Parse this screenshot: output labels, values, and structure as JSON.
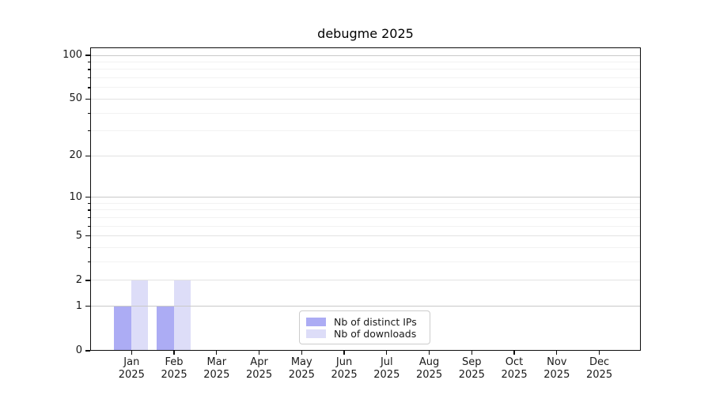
{
  "chart_data": {
    "type": "bar",
    "title": "debugme 2025",
    "x_axis": {
      "categories": [
        "Jan",
        "Feb",
        "Mar",
        "Apr",
        "May",
        "Jun",
        "Jul",
        "Aug",
        "Sep",
        "Oct",
        "Nov",
        "Dec"
      ],
      "year": "2025"
    },
    "y_axis": {
      "scale": "log1p",
      "ticks": [
        0,
        1,
        2,
        5,
        10,
        20,
        50,
        100
      ],
      "ylim_top": 113
    },
    "series": [
      {
        "name": "Nb of distinct IPs",
        "color": "#acacf4",
        "values": [
          1,
          1,
          0,
          0,
          0,
          0,
          0,
          0,
          0,
          0,
          0,
          0
        ]
      },
      {
        "name": "Nb of downloads",
        "color": "#ddddf8",
        "values": [
          2,
          2,
          0,
          0,
          0,
          0,
          0,
          0,
          0,
          0,
          0,
          0
        ]
      }
    ],
    "grid": {
      "major_ticks": [
        1,
        10,
        100
      ],
      "mid_ticks": [
        2,
        5,
        20,
        50
      ],
      "minor_ticks": [
        3,
        4,
        6,
        7,
        8,
        9,
        30,
        40,
        60,
        70,
        80,
        90
      ],
      "major_color": "#c9c9c9",
      "mid_color": "#e2e2e2",
      "minor_color": "#f2f2f2"
    },
    "legend_position": "lower center"
  }
}
